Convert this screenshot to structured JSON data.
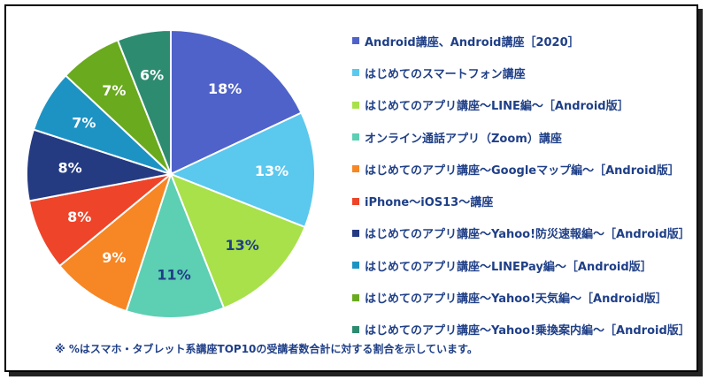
{
  "chart_data": {
    "type": "pie",
    "series": [
      {
        "name": "Android講座、Android講座［2020］",
        "value": 18,
        "label": "18%",
        "color": "#4f62c9"
      },
      {
        "name": "はじめてのスマートフォン講座",
        "value": 13,
        "label": "13%",
        "color": "#5bc8ee"
      },
      {
        "name": "はじめてのアプリ講座～LINE編～［Android版］",
        "value": 13,
        "label": "13%",
        "color": "#a8e14a"
      },
      {
        "name": "オンライン通話アプリ（Zoom）講座",
        "value": 11,
        "label": "11%",
        "color": "#5dcfb3"
      },
      {
        "name": "はじめてのアプリ講座～Googleマップ編～［Android版］",
        "value": 9,
        "label": "9%",
        "color": "#f78624"
      },
      {
        "name": "iPhone～iOS13～講座",
        "value": 8,
        "label": "8%",
        "color": "#ee4429"
      },
      {
        "name": "はじめてのアプリ講座～Yahoo!防災速報編～［Android版］",
        "value": 8,
        "label": "8%",
        "color": "#243b82"
      },
      {
        "name": "はじめてのアプリ講座～LINEPay編～［Android版］",
        "value": 7,
        "label": "7%",
        "color": "#1d93c4"
      },
      {
        "name": "はじめてのアプリ講座～Yahoo!天気編～［Android版］",
        "value": 7,
        "label": "7%",
        "color": "#6aaa1e"
      },
      {
        "name": "はじめてのアプリ講座～Yahoo!乗換案内編～［Android版］",
        "value": 6,
        "label": "6%",
        "color": "#2d8b70"
      }
    ],
    "legend_position": "right"
  },
  "footnote": "※ %はスマホ・タブレット系講座TOP10の受講者数合計に対する割合を示しています。"
}
